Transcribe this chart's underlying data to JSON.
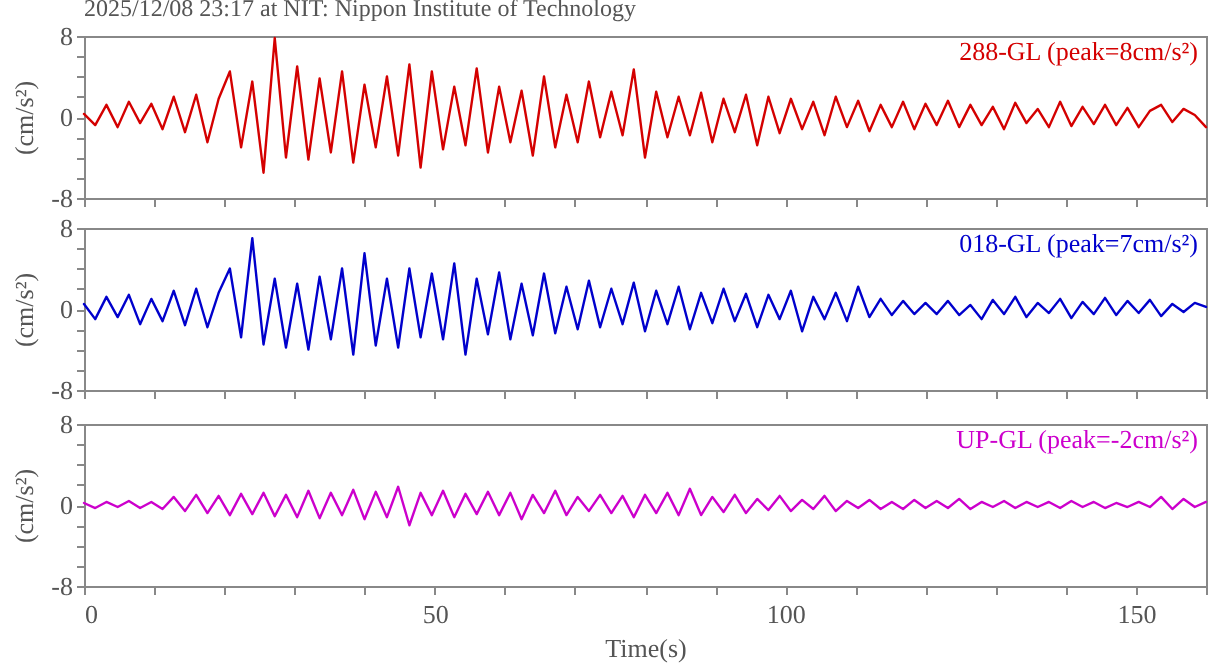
{
  "chart_data": [
    {
      "type": "line",
      "title": "2025/12/08 23:17 at NIT: Nippon Institute of Technology",
      "ylabel": "(cm/s²)",
      "tick_labels": "y",
      "xlim": [
        0,
        160
      ],
      "ylim": [
        -8,
        8
      ],
      "xticks": [
        0,
        {
          "value": 10,
          "label": null
        },
        {
          "value": 20,
          "label": null
        },
        {
          "value": 30,
          "label": null
        },
        {
          "value": 40,
          "label": null
        },
        50,
        {
          "value": 60,
          "label": null
        },
        {
          "value": 70,
          "label": null
        },
        {
          "value": 80,
          "label": null
        },
        {
          "value": 90,
          "label": null
        },
        100,
        {
          "value": 110,
          "label": null
        },
        {
          "value": 120,
          "label": null
        },
        {
          "value": 130,
          "label": null
        },
        {
          "value": 140,
          "label": null
        },
        150,
        {
          "value": 160,
          "label": null
        }
      ],
      "yticks": [
        -8,
        {
          "value": -6,
          "label": null
        },
        {
          "value": -4,
          "label": null
        },
        {
          "value": -2,
          "label": null
        },
        0,
        {
          "value": 2,
          "label": null
        },
        {
          "value": 4,
          "label": null
        },
        {
          "value": 6,
          "label": null
        },
        8
      ],
      "x": [
        0,
        1.6,
        3.2,
        4.8,
        6.4,
        8,
        9.6,
        11.2,
        12.8,
        14.4,
        16,
        17.6,
        19.2,
        20.8,
        22.4,
        24,
        25.6,
        27.2,
        28.8,
        30.4,
        32,
        33.6,
        35.2,
        36.8,
        38.4,
        40,
        41.6,
        43.2,
        44.8,
        46.4,
        48,
        49.6,
        51.2,
        52.8,
        54.4,
        56,
        57.6,
        59.2,
        60.8,
        62.4,
        64,
        65.6,
        67.2,
        68.8,
        70.4,
        72,
        73.6,
        75.2,
        76.8,
        78.4,
        80,
        81.6,
        83.2,
        84.8,
        86.4,
        88,
        89.6,
        91.2,
        92.8,
        94.4,
        96,
        97.6,
        99.2,
        100.8,
        102.4,
        104,
        105.6,
        107.2,
        108.8,
        110.4,
        112,
        113.6,
        115.2,
        116.8,
        118.4,
        120,
        121.6,
        123.2,
        124.8,
        126.4,
        128,
        129.6,
        131.2,
        132.8,
        134.4,
        136,
        137.6,
        139.2,
        140.8,
        142.4,
        144,
        145.6,
        147.2,
        148.8,
        150.4,
        152,
        153.6,
        155.2,
        156.8,
        158.4,
        160
      ],
      "series": [
        {
          "name": "288-GL (peak=8cm/s²)",
          "color": "#d40000",
          "values": [
            0.3,
            -0.8,
            1.2,
            -1.0,
            1.5,
            -0.6,
            1.3,
            -1.2,
            2.0,
            -1.5,
            2.2,
            -2.5,
            1.8,
            4.5,
            -3.0,
            3.5,
            -5.5,
            7.8,
            -4.0,
            5.0,
            -4.2,
            3.8,
            -3.5,
            4.5,
            -4.5,
            3.2,
            -3.0,
            4.0,
            -3.8,
            5.2,
            -5.0,
            4.5,
            -3.2,
            3.0,
            -2.8,
            4.8,
            -3.5,
            3.0,
            -2.5,
            2.6,
            -3.8,
            4.0,
            -3.0,
            2.2,
            -2.5,
            3.5,
            -2.0,
            2.5,
            -1.8,
            4.7,
            -4.0,
            2.5,
            -2.0,
            2.0,
            -1.8,
            2.4,
            -2.5,
            1.8,
            -1.5,
            2.2,
            -2.8,
            2.0,
            -1.6,
            1.8,
            -1.2,
            1.5,
            -1.8,
            2.0,
            -1.0,
            1.6,
            -1.4,
            1.2,
            -1.0,
            1.5,
            -1.2,
            1.3,
            -0.8,
            1.6,
            -1.0,
            1.2,
            -0.8,
            1.0,
            -1.2,
            1.4,
            -0.6,
            0.8,
            -1.0,
            1.5,
            -0.9,
            1.0,
            -0.7,
            1.2,
            -0.8,
            0.9,
            -1.0,
            0.6,
            1.2,
            -0.5,
            0.8,
            0.2,
            -1.0
          ]
        }
      ]
    },
    {
      "type": "line",
      "ylabel": "(cm/s²)",
      "tick_labels": "y",
      "xlim": [
        0,
        160
      ],
      "ylim": [
        -8,
        8
      ],
      "xticks": [
        0,
        {
          "value": 10,
          "label": null
        },
        {
          "value": 20,
          "label": null
        },
        {
          "value": 30,
          "label": null
        },
        {
          "value": 40,
          "label": null
        },
        50,
        {
          "value": 60,
          "label": null
        },
        {
          "value": 70,
          "label": null
        },
        {
          "value": 80,
          "label": null
        },
        {
          "value": 90,
          "label": null
        },
        100,
        {
          "value": 110,
          "label": null
        },
        {
          "value": 120,
          "label": null
        },
        {
          "value": 130,
          "label": null
        },
        {
          "value": 140,
          "label": null
        },
        150,
        {
          "value": 160,
          "label": null
        }
      ],
      "yticks": [
        -8,
        {
          "value": -6,
          "label": null
        },
        {
          "value": -4,
          "label": null
        },
        {
          "value": -2,
          "label": null
        },
        0,
        {
          "value": 2,
          "label": null
        },
        {
          "value": 4,
          "label": null
        },
        {
          "value": 6,
          "label": null
        },
        8
      ],
      "x": [
        0,
        1.6,
        3.2,
        4.8,
        6.4,
        8,
        9.6,
        11.2,
        12.8,
        14.4,
        16,
        17.6,
        19.2,
        20.8,
        22.4,
        24,
        25.6,
        27.2,
        28.8,
        30.4,
        32,
        33.6,
        35.2,
        36.8,
        38.4,
        40,
        41.6,
        43.2,
        44.8,
        46.4,
        48,
        49.6,
        51.2,
        52.8,
        54.4,
        56,
        57.6,
        59.2,
        60.8,
        62.4,
        64,
        65.6,
        67.2,
        68.8,
        70.4,
        72,
        73.6,
        75.2,
        76.8,
        78.4,
        80,
        81.6,
        83.2,
        84.8,
        86.4,
        88,
        89.6,
        91.2,
        92.8,
        94.4,
        96,
        97.6,
        99.2,
        100.8,
        102.4,
        104,
        105.6,
        107.2,
        108.8,
        110.4,
        112,
        113.6,
        115.2,
        116.8,
        118.4,
        120,
        121.6,
        123.2,
        124.8,
        126.4,
        128,
        129.6,
        131.2,
        132.8,
        134.4,
        136,
        137.6,
        139.2,
        140.8,
        142.4,
        144,
        145.6,
        147.2,
        148.8,
        150.4,
        152,
        153.6,
        155.2,
        156.8,
        158.4,
        160
      ],
      "series": [
        {
          "name": "018-GL (peak=7cm/s²)",
          "color": "#0000cc",
          "values": [
            0.5,
            -1.0,
            1.2,
            -0.8,
            1.4,
            -1.5,
            1.0,
            -1.2,
            1.8,
            -1.6,
            2.0,
            -1.8,
            1.6,
            4.0,
            -2.8,
            7.0,
            -3.5,
            3.0,
            -3.8,
            2.5,
            -4.0,
            3.2,
            -3.0,
            4.0,
            -4.5,
            5.5,
            -3.6,
            3.0,
            -3.8,
            4.0,
            -2.8,
            3.5,
            -3.0,
            4.5,
            -4.5,
            3.0,
            -2.5,
            3.6,
            -3.0,
            2.5,
            -2.6,
            3.5,
            -2.4,
            2.2,
            -2.0,
            2.8,
            -1.8,
            2.0,
            -1.5,
            2.6,
            -2.2,
            1.8,
            -1.5,
            2.2,
            -2.0,
            1.6,
            -1.4,
            2.0,
            -1.2,
            1.5,
            -1.8,
            1.4,
            -1.0,
            1.8,
            -2.2,
            1.2,
            -1.0,
            1.6,
            -1.2,
            2.2,
            -0.8,
            1.0,
            -0.6,
            0.8,
            -0.5,
            0.6,
            -0.5,
            0.8,
            -0.6,
            0.4,
            -1.0,
            0.9,
            -0.5,
            1.2,
            -0.8,
            0.6,
            -0.4,
            1.0,
            -0.9,
            0.7,
            -0.5,
            1.1,
            -0.6,
            0.8,
            -0.4,
            0.9,
            -0.7,
            0.5,
            -0.3,
            0.6,
            0.2
          ]
        }
      ]
    },
    {
      "type": "line",
      "xlabel": "Time(s)",
      "ylabel": "(cm/s²)",
      "xlim": [
        0,
        160
      ],
      "ylim": [
        -8,
        8
      ],
      "xticks": [
        0,
        {
          "value": 10,
          "label": null
        },
        {
          "value": 20,
          "label": null
        },
        {
          "value": 30,
          "label": null
        },
        {
          "value": 40,
          "label": null
        },
        50,
        {
          "value": 60,
          "label": null
        },
        {
          "value": 70,
          "label": null
        },
        {
          "value": 80,
          "label": null
        },
        {
          "value": 90,
          "label": null
        },
        100,
        {
          "value": 110,
          "label": null
        },
        {
          "value": 120,
          "label": null
        },
        {
          "value": 130,
          "label": null
        },
        {
          "value": 140,
          "label": null
        },
        150,
        {
          "value": 160,
          "label": null
        }
      ],
      "yticks": [
        -8,
        {
          "value": -6,
          "label": null
        },
        {
          "value": -4,
          "label": null
        },
        {
          "value": -2,
          "label": null
        },
        0,
        {
          "value": 2,
          "label": null
        },
        {
          "value": 4,
          "label": null
        },
        {
          "value": 6,
          "label": null
        },
        8
      ],
      "x": [
        0,
        1.6,
        3.2,
        4.8,
        6.4,
        8,
        9.6,
        11.2,
        12.8,
        14.4,
        16,
        17.6,
        19.2,
        20.8,
        22.4,
        24,
        25.6,
        27.2,
        28.8,
        30.4,
        32,
        33.6,
        35.2,
        36.8,
        38.4,
        40,
        41.6,
        43.2,
        44.8,
        46.4,
        48,
        49.6,
        51.2,
        52.8,
        54.4,
        56,
        57.6,
        59.2,
        60.8,
        62.4,
        64,
        65.6,
        67.2,
        68.8,
        70.4,
        72,
        73.6,
        75.2,
        76.8,
        78.4,
        80,
        81.6,
        83.2,
        84.8,
        86.4,
        88,
        89.6,
        91.2,
        92.8,
        94.4,
        96,
        97.6,
        99.2,
        100.8,
        102.4,
        104,
        105.6,
        107.2,
        108.8,
        110.4,
        112,
        113.6,
        115.2,
        116.8,
        118.4,
        120,
        121.6,
        123.2,
        124.8,
        126.4,
        128,
        129.6,
        131.2,
        132.8,
        134.4,
        136,
        137.6,
        139.2,
        140.8,
        142.4,
        144,
        145.6,
        147.2,
        148.8,
        150.4,
        152,
        153.6,
        155.2,
        156.8,
        158.4,
        160
      ],
      "series": [
        {
          "name": "UP-GL (peak=-2cm/s²)",
          "color": "#cc00cc",
          "values": [
            0.2,
            -0.3,
            0.3,
            -0.2,
            0.4,
            -0.3,
            0.3,
            -0.4,
            0.8,
            -0.6,
            1.0,
            -0.8,
            0.9,
            -1.0,
            1.1,
            -0.9,
            1.2,
            -1.1,
            1.0,
            -1.2,
            1.4,
            -1.3,
            1.2,
            -1.0,
            1.5,
            -1.4,
            1.3,
            -1.2,
            1.8,
            -2.0,
            1.2,
            -1.0,
            1.4,
            -1.2,
            1.1,
            -0.9,
            1.3,
            -1.0,
            1.2,
            -1.4,
            1.0,
            -0.8,
            1.4,
            -1.0,
            0.8,
            -0.6,
            1.0,
            -0.8,
            0.9,
            -1.2,
            1.0,
            -0.8,
            1.2,
            -1.0,
            1.6,
            -1.0,
            0.8,
            -0.7,
            1.0,
            -0.8,
            0.6,
            -0.5,
            0.9,
            -0.6,
            0.5,
            -0.4,
            0.9,
            -0.6,
            0.4,
            -0.3,
            0.5,
            -0.4,
            0.3,
            -0.4,
            0.5,
            -0.3,
            0.4,
            -0.3,
            0.6,
            -0.4,
            0.3,
            -0.2,
            0.4,
            -0.3,
            0.3,
            -0.2,
            0.3,
            -0.3,
            0.4,
            -0.2,
            0.3,
            -0.3,
            0.2,
            -0.2,
            0.3,
            -0.2,
            0.8,
            -0.4,
            0.6,
            -0.2,
            0.3
          ]
        }
      ]
    }
  ]
}
